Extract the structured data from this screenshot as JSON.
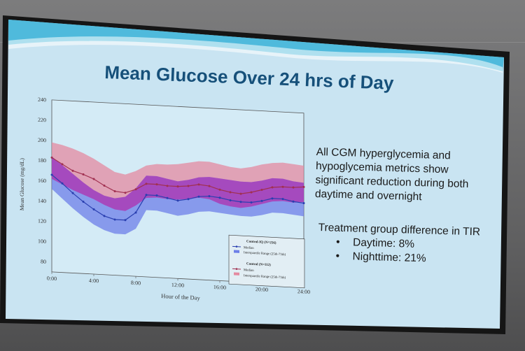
{
  "slide": {
    "title": "Mean Glucose Over 24 hrs of Day",
    "summary": "All CGM hyperglycemia and hypoglycemia metrics show significant reduction during both daytime and overnight",
    "tir_heading": "Treatment group difference in TIR",
    "tir_items": [
      "Daytime: 8%",
      "Nighttime: 21%"
    ]
  },
  "colors": {
    "slide_bg": "#c9e4f2",
    "wave": "#3ab3d8",
    "iq_line": "#2a3fb0",
    "iq_band": "#6d7fe8",
    "control_line": "#a03050",
    "control_band": "#e48aa0",
    "overlap_band": "#b030b0"
  },
  "chart_data": {
    "type": "line",
    "xlabel": "Hour of the Day",
    "ylabel": "Mean Glucose (mg/dL)",
    "xlim": [
      0,
      24
    ],
    "ylim": [
      70,
      240
    ],
    "x_ticks": [
      "0:00",
      "4:00",
      "8:00",
      "12:00",
      "16:00",
      "20:00",
      "24:00"
    ],
    "y_ticks": [
      "80",
      "100",
      "120",
      "140",
      "160",
      "180",
      "200",
      "220",
      "240"
    ],
    "x": [
      0,
      1,
      2,
      3,
      4,
      5,
      6,
      7,
      8,
      9,
      10,
      11,
      12,
      13,
      14,
      15,
      16,
      17,
      18,
      19,
      20,
      21,
      22,
      23,
      24
    ],
    "legend_position": "bottom-right",
    "series": [
      {
        "name": "Control-IQ (N=256)",
        "legend_median": "Median",
        "legend_iqr": "Interquartile Range (25th-75th)",
        "median": [
          166,
          158,
          149,
          141,
          134,
          128,
          125,
          125,
          133,
          151,
          151,
          149,
          147,
          149,
          152,
          153,
          152,
          150,
          149,
          149,
          151,
          154,
          154,
          152,
          151
        ],
        "q1": [
          152,
          143,
          134,
          126,
          119,
          114,
          111,
          111,
          117,
          136,
          136,
          134,
          132,
          134,
          137,
          138,
          137,
          136,
          135,
          135,
          137,
          140,
          140,
          139,
          138
        ],
        "q3": [
          184,
          176,
          168,
          160,
          153,
          148,
          146,
          148,
          157,
          170,
          170,
          168,
          166,
          168,
          171,
          172,
          171,
          170,
          169,
          169,
          171,
          174,
          174,
          172,
          171
        ]
      },
      {
        "name": "Control (N=112)",
        "legend_median": "Median",
        "legend_iqr": "Interquartile Range (25th-75th)",
        "median": [
          183,
          177,
          171,
          168,
          164,
          158,
          153,
          152,
          156,
          162,
          162,
          161,
          161,
          162,
          164,
          163,
          160,
          158,
          157,
          159,
          162,
          165,
          166,
          166,
          167
        ],
        "q1": [
          162,
          157,
          152,
          148,
          144,
          139,
          135,
          134,
          140,
          148,
          149,
          148,
          148,
          149,
          151,
          150,
          146,
          144,
          143,
          145,
          148,
          151,
          152,
          151,
          152
        ],
        "q3": [
          198,
          196,
          193,
          189,
          184,
          178,
          172,
          170,
          174,
          180,
          182,
          182,
          183,
          185,
          187,
          187,
          185,
          183,
          182,
          184,
          187,
          189,
          190,
          189,
          188
        ]
      }
    ]
  }
}
